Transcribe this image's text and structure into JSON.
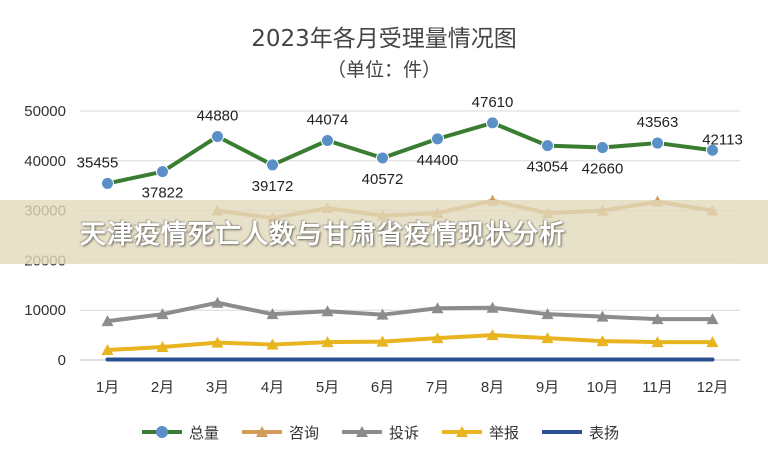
{
  "banner": {
    "title": "天津疫情死亡人数与甘肃省疫情现状分析"
  },
  "chart_data": {
    "type": "line",
    "title": "2023年各月受理量情况图",
    "subtitle": "（单位：件）",
    "categories": [
      "1月",
      "2月",
      "3月",
      "4月",
      "5月",
      "6月",
      "7月",
      "8月",
      "9月",
      "10月",
      "11月",
      "12月"
    ],
    "ylim": [
      0,
      50000
    ],
    "yticks": [
      0,
      10000,
      20000,
      30000,
      40000,
      50000
    ],
    "grid": true,
    "legend_position": "bottom",
    "series": [
      {
        "name": "总量",
        "color": "#3a7d32",
        "marker": "circle",
        "marker_color": "#5b8fc7",
        "values": [
          35455,
          37822,
          44880,
          39172,
          44074,
          40572,
          44400,
          47610,
          43054,
          42660,
          43563,
          42113
        ],
        "labels": [
          "35455",
          "37822",
          "44880",
          "39172",
          "44074",
          "40572",
          "44400",
          "47610",
          "43054",
          "42660",
          "43563",
          "42113"
        ]
      },
      {
        "name": "咨询",
        "color": "#d49a5a",
        "marker": "triangle",
        "marker_color": "#d49a5a",
        "values": [
          null,
          null,
          30000,
          28500,
          30500,
          29000,
          29500,
          32000,
          29500,
          30000,
          31800,
          30000
        ]
      },
      {
        "name": "投诉",
        "color": "#8c8c8c",
        "marker": "triangle",
        "marker_color": "#8c8c8c",
        "values": [
          7800,
          9200,
          11500,
          9200,
          9800,
          9100,
          10400,
          10500,
          9200,
          8700,
          8200,
          8200
        ]
      },
      {
        "name": "举报",
        "color": "#e8b41f",
        "marker": "triangle",
        "marker_color": "#e8b41f",
        "values": [
          2000,
          2600,
          3500,
          3100,
          3600,
          3700,
          4400,
          5000,
          4400,
          3800,
          3600,
          3600
        ]
      },
      {
        "name": "表扬",
        "color": "#2a4f8f",
        "marker": "none",
        "marker_color": "#2a4f8f",
        "values": [
          100,
          100,
          100,
          100,
          100,
          100,
          100,
          100,
          100,
          100,
          100,
          100
        ]
      }
    ]
  }
}
